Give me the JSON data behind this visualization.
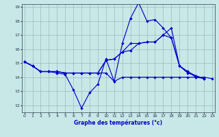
{
  "title": "Graphe des températures (°c)",
  "bg_color": "#c8e8e8",
  "line_color": "#0000cc",
  "grid_color": "#99bbbb",
  "x_values": [
    0,
    1,
    2,
    3,
    4,
    5,
    6,
    7,
    8,
    9,
    10,
    11,
    12,
    13,
    14,
    15,
    16,
    17,
    18,
    19,
    20,
    21,
    22,
    23
  ],
  "line1": [
    15.1,
    14.8,
    14.4,
    14.4,
    14.3,
    14.2,
    13.1,
    11.8,
    12.9,
    13.5,
    15.3,
    13.7,
    16.4,
    18.2,
    19.3,
    18.0,
    18.1,
    17.5,
    16.8,
    14.8,
    14.4,
    14.0,
    13.9,
    null
  ],
  "line2": [
    15.1,
    14.8,
    14.4,
    14.4,
    14.4,
    14.3,
    14.3,
    14.3,
    14.3,
    14.3,
    15.2,
    15.3,
    15.8,
    15.9,
    16.4,
    16.5,
    16.5,
    17.0,
    16.8,
    14.8,
    14.4,
    14.1,
    13.9,
    null
  ],
  "line3": [
    15.1,
    14.8,
    14.4,
    14.4,
    14.4,
    14.3,
    14.3,
    14.3,
    14.3,
    14.3,
    14.3,
    13.7,
    14.0,
    14.0,
    14.0,
    14.0,
    14.0,
    14.0,
    14.0,
    14.0,
    14.0,
    14.0,
    14.0,
    13.9
  ],
  "line4": [
    15.1,
    14.8,
    14.4,
    14.4,
    14.4,
    14.3,
    14.3,
    14.3,
    14.3,
    14.3,
    15.2,
    15.3,
    15.8,
    16.4,
    16.4,
    16.5,
    16.5,
    17.0,
    17.5,
    14.8,
    14.3,
    14.1,
    13.9,
    null
  ],
  "xlim": [
    -0.3,
    23.3
  ],
  "ylim": [
    11.5,
    19.2
  ],
  "yticks": [
    12,
    13,
    14,
    15,
    16,
    17,
    18,
    19
  ],
  "xticks": [
    0,
    1,
    2,
    3,
    4,
    5,
    6,
    7,
    8,
    9,
    10,
    11,
    12,
    13,
    14,
    15,
    16,
    17,
    18,
    19,
    20,
    21,
    22,
    23
  ]
}
